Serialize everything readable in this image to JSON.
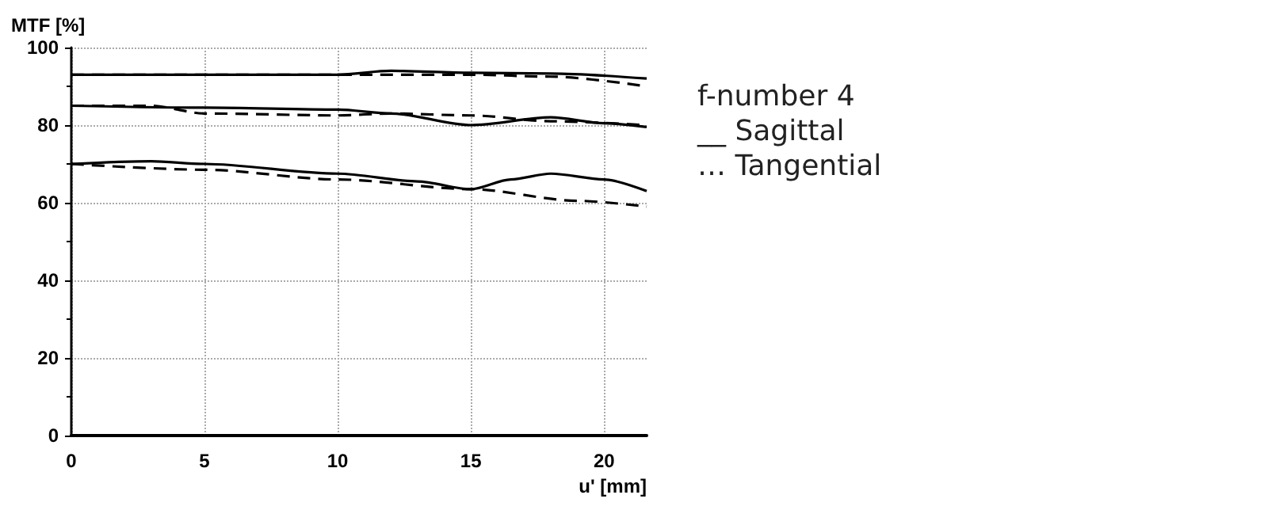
{
  "chart_data": {
    "type": "line",
    "xlabel": "u' [mm]",
    "ylabel": "MTF [%]",
    "annotations": [
      "f-number 4",
      "__ Sagittal",
      "… Tangential"
    ],
    "xlim": [
      0,
      21.6
    ],
    "xticks": [
      0,
      5,
      10,
      15,
      20
    ],
    "ylim": [
      0,
      100
    ],
    "yticks": [
      0,
      20,
      40,
      60,
      80,
      100
    ],
    "grid": true,
    "marker": "none",
    "series": [
      {
        "color": "#000000",
        "line_style": "solid",
        "x": [
          0,
          5,
          10,
          12,
          15,
          18,
          21.6
        ],
        "values": [
          93,
          93,
          93,
          94,
          93.5,
          93.3,
          92
        ]
      },
      {
        "color": "#000000",
        "line_style": "dashed",
        "x": [
          0,
          5,
          10,
          15,
          18,
          21.6
        ],
        "values": [
          93,
          93,
          93,
          93,
          92.5,
          90
        ]
      },
      {
        "color": "#000000",
        "line_style": "solid",
        "x": [
          0,
          5,
          10,
          12,
          15,
          18,
          20,
          21.6
        ],
        "values": [
          85,
          84.5,
          84,
          83,
          80,
          82,
          80.5,
          79.5
        ]
      },
      {
        "color": "#000000",
        "line_style": "dashed",
        "x": [
          0,
          3,
          5,
          10,
          12,
          15,
          18,
          21.6
        ],
        "values": [
          85,
          85,
          83,
          82.5,
          83,
          82.5,
          81,
          80
        ]
      },
      {
        "color": "#000000",
        "line_style": "solid",
        "x": [
          0,
          3,
          5,
          10,
          13,
          15,
          16.5,
          18,
          20,
          21.6
        ],
        "values": [
          70,
          70.7,
          70,
          67.5,
          65.5,
          63.5,
          66,
          67.5,
          66,
          63
        ]
      },
      {
        "color": "#000000",
        "line_style": "dashed",
        "x": [
          0,
          5,
          10,
          15,
          19,
          21.6
        ],
        "values": [
          70,
          68.5,
          66,
          63.5,
          60.5,
          59
        ]
      }
    ]
  }
}
